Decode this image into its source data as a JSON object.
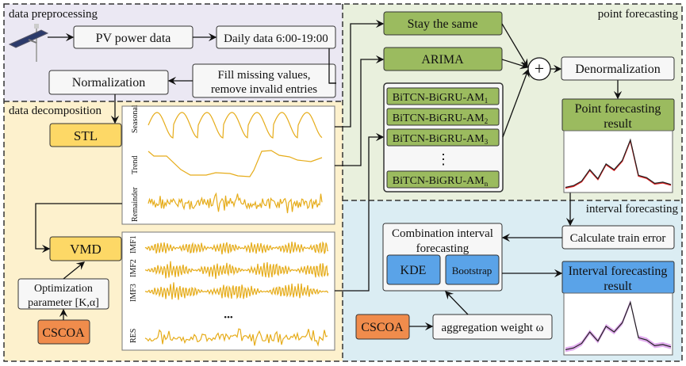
{
  "regions": {
    "preprocessing": "data preprocessing",
    "decomposition": "data decomposition",
    "point": "point forecasting",
    "interval": "interval forecasting"
  },
  "preprocessing": {
    "pv_power": "PV power data",
    "daily": "Daily data 6:00-19:00",
    "fill_1": "Fill missing values,",
    "fill_2": "remove invalid entries",
    "normalization": "Normalization"
  },
  "decomposition": {
    "stl": "STL",
    "vmd": "VMD",
    "optim_1": "Optimization",
    "optim_2": "parameter [K,α]",
    "cscoa": "CSCOA",
    "stl_labels": [
      "Seasonal",
      "Trend",
      "Remainder"
    ],
    "vmd_labels": [
      "IMF1",
      "IMF2",
      "IMF3",
      "RES"
    ],
    "ellipsis": "•••"
  },
  "point": {
    "stay": "Stay the same",
    "arima": "ARIMA",
    "models": [
      "BiTCN-BiGRU-AM",
      "BiTCN-BiGRU-AM",
      "BiTCN-BiGRU-AM",
      "BiTCN-BiGRU-AM"
    ],
    "model_subscripts": [
      "1",
      "2",
      "3",
      "n"
    ],
    "vdots": "⋮",
    "plus": "+",
    "denorm": "Denormalization",
    "result_1": "Point forecasting",
    "result_2": "result"
  },
  "interval": {
    "calc_error": "Calculate train error",
    "combo_1": "Combination interval",
    "combo_2": "forecasting",
    "kde": "KDE",
    "bootstrap": "Bootstrap",
    "result_1": "Interval forecasting",
    "result_2": "result",
    "cscoa": "CSCOA",
    "weight": "aggregation weight ω"
  },
  "forecast_curve": [
    0.05,
    0.08,
    0.16,
    0.36,
    0.2,
    0.46,
    0.36,
    0.52,
    0.88,
    0.26,
    0.22,
    0.12,
    0.14,
    0.1
  ],
  "colors": {
    "preprocessing_bg": "#ebe8f3",
    "decomposition_bg": "#fdf1cd",
    "point_bg": "#e9f0dd",
    "interval_bg": "#dbedf3",
    "green": "#9bbb5f",
    "yellow": "#fdd866",
    "orange": "#f08c4c",
    "blue": "#5aa3e8",
    "wave": "#e6ac1a"
  }
}
